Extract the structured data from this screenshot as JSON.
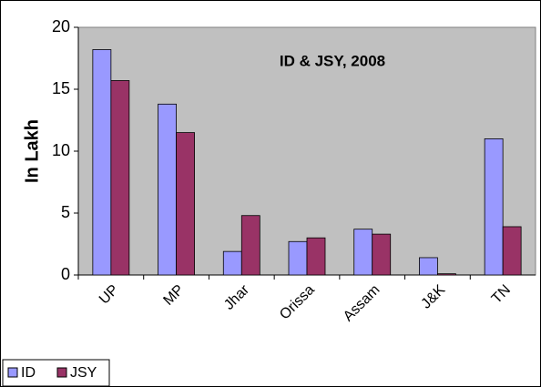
{
  "chart_data": {
    "type": "bar",
    "title": "ID & JSY, 2008",
    "y_label": "In Lakh",
    "categories": [
      "UP",
      "MP",
      "Jhar",
      "Orissa",
      "Assam",
      "J&K",
      "TN"
    ],
    "series": [
      {
        "name": "ID",
        "color": "#9999ff",
        "values": [
          18.2,
          13.8,
          1.9,
          2.7,
          3.7,
          1.4,
          11.0
        ]
      },
      {
        "name": "JSY",
        "color": "#993366",
        "values": [
          15.7,
          11.5,
          4.8,
          3.0,
          3.3,
          0.1,
          3.9
        ]
      }
    ],
    "ylim": [
      0,
      20
    ],
    "yticks": [
      0,
      5,
      10,
      15,
      20
    ],
    "plot_background": "#c0c0c0",
    "legend": "bottom-left"
  }
}
